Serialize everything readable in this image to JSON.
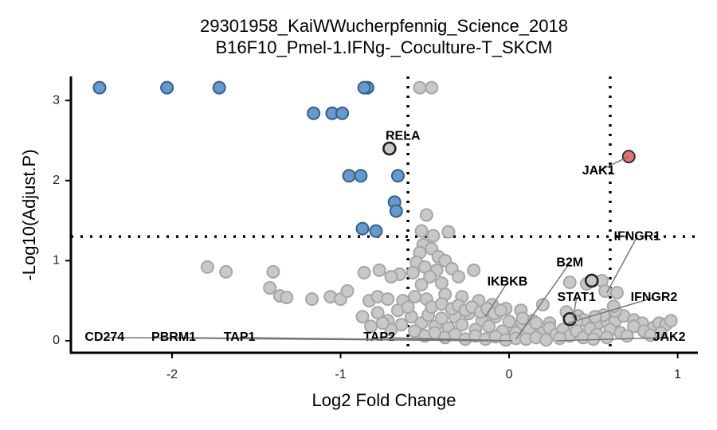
{
  "chart_data": {
    "type": "scatter",
    "title": [
      "29301958_KaiWWucherpfennig_Science_2018",
      "B16F10_Pmel-1.IFNg-_Coculture-T_SKCM"
    ],
    "xlabel": "Log2 Fold Change",
    "ylabel": "-Log10(Adjust.P)",
    "xlim": [
      -2.6,
      1.12
    ],
    "ylim": [
      -0.15,
      3.3
    ],
    "x_ticks": [
      -2,
      -1,
      0,
      1
    ],
    "y_ticks": [
      0,
      1,
      2,
      3
    ],
    "thresholds": {
      "x": [
        -0.6,
        0.6
      ],
      "y": 1.3
    },
    "colors": {
      "down": "#6699cc",
      "up": "#ee6f6f",
      "neutral": "#c8c8c8",
      "highlight_stroke": "#222222"
    },
    "series": [
      {
        "name": "down",
        "points": [
          [
            -2.43,
            3.16
          ],
          [
            -2.03,
            3.16
          ],
          [
            -1.72,
            3.16
          ],
          [
            -0.84,
            3.16
          ],
          [
            -0.86,
            3.16
          ],
          [
            -1.16,
            2.84
          ],
          [
            -1.05,
            2.84
          ],
          [
            -0.99,
            2.84
          ],
          [
            -0.95,
            2.06
          ],
          [
            -0.88,
            2.06
          ],
          [
            -0.66,
            2.06
          ],
          [
            -0.68,
            1.73
          ],
          [
            -0.67,
            1.62
          ],
          [
            -0.87,
            1.4
          ],
          [
            -0.79,
            1.37
          ]
        ]
      },
      {
        "name": "up",
        "points": [
          [
            0.71,
            2.3
          ]
        ]
      },
      {
        "name": "neutral",
        "points": [
          [
            -0.53,
            3.16
          ],
          [
            -0.46,
            3.16
          ],
          [
            -0.49,
            1.57
          ],
          [
            -0.52,
            1.37
          ],
          [
            -0.45,
            1.31
          ],
          [
            -0.36,
            1.36
          ],
          [
            -0.51,
            1.2
          ],
          [
            -0.46,
            1.15
          ],
          [
            -0.42,
            1.05
          ],
          [
            -0.53,
            1.1
          ],
          [
            -0.38,
            1.0
          ],
          [
            -0.55,
            0.98
          ],
          [
            -0.5,
            0.92
          ],
          [
            -0.43,
            0.88
          ],
          [
            -0.34,
            0.9
          ],
          [
            -0.3,
            0.8
          ],
          [
            -0.21,
            0.88
          ],
          [
            -0.47,
            0.8
          ],
          [
            -0.4,
            0.72
          ],
          [
            -0.52,
            0.7
          ],
          [
            -0.57,
            0.85
          ],
          [
            -0.65,
            0.83
          ],
          [
            -0.77,
            0.88
          ],
          [
            -0.86,
            0.85
          ],
          [
            -0.7,
            0.8
          ],
          [
            -1.79,
            0.92
          ],
          [
            -1.68,
            0.86
          ],
          [
            -1.4,
            0.86
          ],
          [
            -1.42,
            0.66
          ],
          [
            -1.36,
            0.56
          ],
          [
            -1.32,
            0.54
          ],
          [
            -1.17,
            0.52
          ],
          [
            -1.06,
            0.55
          ],
          [
            -1.0,
            0.52
          ],
          [
            -0.96,
            0.62
          ],
          [
            -0.83,
            0.5
          ],
          [
            -0.78,
            0.55
          ],
          [
            -0.72,
            0.52
          ],
          [
            -0.63,
            0.5
          ],
          [
            -0.56,
            0.55
          ],
          [
            -0.49,
            0.52
          ],
          [
            -0.38,
            0.58
          ],
          [
            -0.28,
            0.55
          ],
          [
            -0.18,
            0.5
          ],
          [
            -0.1,
            0.45
          ],
          [
            -0.02,
            0.4
          ],
          [
            0.07,
            0.38
          ],
          [
            0.2,
            0.45
          ],
          [
            0.34,
            0.36
          ],
          [
            0.41,
            0.31
          ],
          [
            0.44,
            0.26
          ],
          [
            0.53,
            0.22
          ],
          [
            0.58,
            0.24
          ],
          [
            0.63,
            0.25
          ],
          [
            0.68,
            0.31
          ],
          [
            0.63,
            0.37
          ],
          [
            0.62,
            0.43
          ],
          [
            0.56,
            0.32
          ],
          [
            0.51,
            0.3
          ],
          [
            0.4,
            0.24
          ],
          [
            0.36,
            0.18
          ],
          [
            0.24,
            0.22
          ],
          [
            0.14,
            0.25
          ],
          [
            0.07,
            0.2
          ],
          [
            0.02,
            0.15
          ],
          [
            0.74,
            0.26
          ],
          [
            0.79,
            0.22
          ],
          [
            0.86,
            0.17
          ],
          [
            0.89,
            0.22
          ],
          [
            0.93,
            0.2
          ],
          [
            0.96,
            0.25
          ],
          [
            0.74,
            0.18
          ],
          [
            0.55,
            0.75
          ],
          [
            0.46,
            0.71
          ],
          [
            0.36,
            0.73
          ],
          [
            0.64,
            0.6
          ],
          [
            0.57,
            0.62
          ],
          [
            -0.87,
            0.3
          ],
          [
            -0.78,
            0.35
          ],
          [
            -0.72,
            0.25
          ],
          [
            -0.66,
            0.38
          ],
          [
            -0.58,
            0.3
          ],
          [
            -0.52,
            0.22
          ],
          [
            -0.48,
            0.32
          ],
          [
            -0.44,
            0.18
          ],
          [
            -0.4,
            0.28
          ],
          [
            -0.36,
            0.16
          ],
          [
            -0.32,
            0.3
          ],
          [
            -0.28,
            0.2
          ],
          [
            -0.24,
            0.34
          ],
          [
            -0.2,
            0.14
          ],
          [
            -0.16,
            0.26
          ],
          [
            -0.12,
            0.18
          ],
          [
            -0.08,
            0.3
          ],
          [
            -0.04,
            0.12
          ],
          [
            0.0,
            0.24
          ],
          [
            0.04,
            0.1
          ],
          [
            0.08,
            0.28
          ],
          [
            0.12,
            0.14
          ],
          [
            0.16,
            0.22
          ],
          [
            0.2,
            0.1
          ],
          [
            0.24,
            0.16
          ],
          [
            0.28,
            0.08
          ],
          [
            0.32,
            0.14
          ],
          [
            0.36,
            0.06
          ],
          [
            0.4,
            0.12
          ],
          [
            0.44,
            0.04
          ],
          [
            -0.56,
            0.12
          ],
          [
            -0.5,
            0.06
          ],
          [
            -0.44,
            0.1
          ],
          [
            -0.38,
            0.04
          ],
          [
            -0.32,
            0.08
          ],
          [
            -0.26,
            0.02
          ],
          [
            -0.2,
            0.06
          ],
          [
            -0.14,
            0.02
          ],
          [
            -0.08,
            0.05
          ],
          [
            -0.02,
            0.01
          ],
          [
            0.04,
            0.03
          ],
          [
            0.1,
            0.02
          ],
          [
            0.16,
            0.04
          ],
          [
            0.22,
            0.01
          ],
          [
            0.3,
            0.03
          ],
          [
            -0.46,
            0.42
          ],
          [
            -0.4,
            0.46
          ],
          [
            -0.34,
            0.4
          ],
          [
            -0.3,
            0.44
          ],
          [
            -0.26,
            0.38
          ],
          [
            -0.22,
            0.42
          ],
          [
            -0.17,
            0.36
          ],
          [
            -0.13,
            0.4
          ],
          [
            -0.09,
            0.34
          ],
          [
            -0.05,
            0.38
          ],
          [
            -0.6,
            0.42
          ],
          [
            -0.64,
            0.2
          ],
          [
            -0.7,
            0.14
          ],
          [
            -0.75,
            0.22
          ],
          [
            -0.82,
            0.18
          ],
          [
            0.48,
            0.15
          ],
          [
            0.52,
            0.08
          ],
          [
            0.6,
            0.14
          ],
          [
            0.66,
            0.1
          ],
          [
            0.7,
            0.06
          ],
          [
            0.8,
            0.12
          ],
          [
            0.84,
            0.07
          ],
          [
            0.9,
            0.1
          ],
          [
            0.5,
            0.02
          ],
          [
            0.58,
            0.04
          ]
        ]
      },
      {
        "name": "highlight",
        "points": [
          [
            -0.71,
            2.4
          ],
          [
            0.49,
            0.75
          ],
          [
            0.36,
            0.27
          ]
        ]
      }
    ],
    "annotations": [
      {
        "text": "RELA",
        "x": -0.71,
        "y": 2.4,
        "label_x": -0.63,
        "label_y": 2.55
      },
      {
        "text": "JAK1",
        "x": 0.71,
        "y": 2.3,
        "label_x": 0.53,
        "label_y": 2.12
      },
      {
        "text": "IFNGR1",
        "x": 0.58,
        "y": 0.6,
        "label_x": 0.76,
        "label_y": 1.3
      },
      {
        "text": "B2M",
        "x": 0.04,
        "y": 0.02,
        "label_x": 0.36,
        "label_y": 0.97
      },
      {
        "text": "IKBKB",
        "x": -0.14,
        "y": 0.3,
        "label_x": -0.01,
        "label_y": 0.73
      },
      {
        "text": "STAT1",
        "x": 0.38,
        "y": 0.28,
        "label_x": 0.4,
        "label_y": 0.54
      },
      {
        "text": "IFNGR2",
        "x": 0.35,
        "y": 0.22,
        "label_x": 0.86,
        "label_y": 0.54
      },
      {
        "text": "TAP2",
        "x": 0.02,
        "y": 0.0,
        "label_x": -0.77,
        "label_y": 0.04
      },
      {
        "text": "JAK2",
        "x": 0.28,
        "y": 0.0,
        "label_x": 0.95,
        "label_y": 0.04
      },
      {
        "text": "CD274",
        "x": -0.12,
        "y": 0.0,
        "label_x": -2.4,
        "label_y": 0.04
      },
      {
        "text": "PBRM1",
        "x": -0.08,
        "y": 0.0,
        "label_x": -1.99,
        "label_y": 0.04
      },
      {
        "text": "TAP1",
        "x": 0.0,
        "y": 0.0,
        "label_x": -1.6,
        "label_y": 0.04
      }
    ]
  }
}
